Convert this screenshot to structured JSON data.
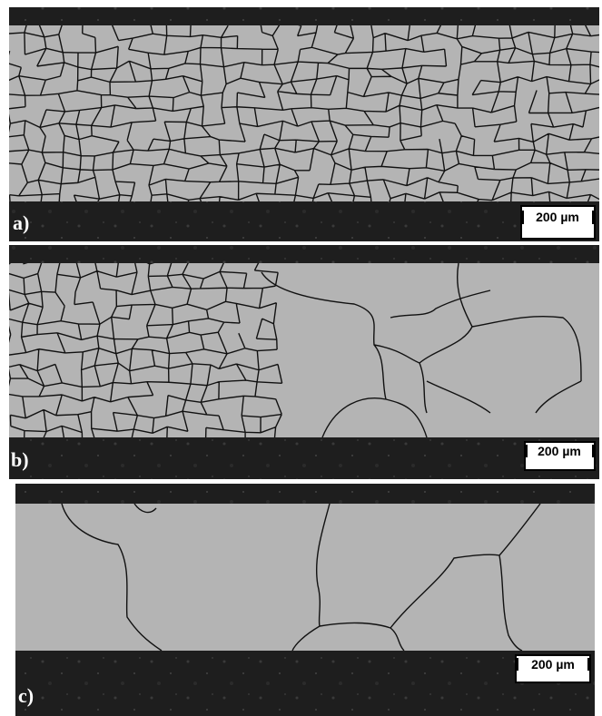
{
  "panels": [
    {
      "label": "a)",
      "scale_bar": "200 µm"
    },
    {
      "label": "b)",
      "scale_bar": "200 µm"
    },
    {
      "label": "c)",
      "scale_bar": "200 µm"
    }
  ]
}
